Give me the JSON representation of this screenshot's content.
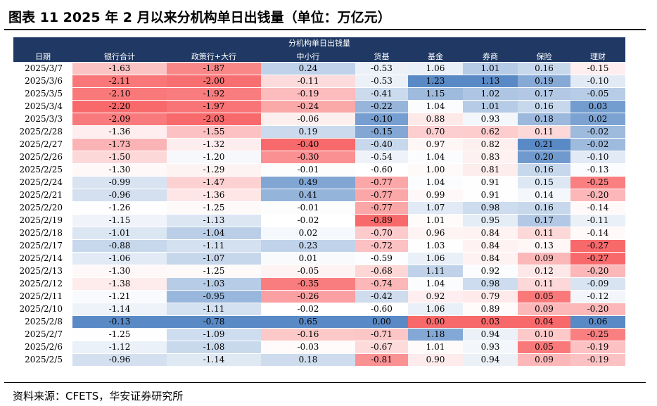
{
  "figure": {
    "title": "图表 11 2025 年 2 月以来分机构单日出钱量（单位：万亿元）",
    "source": "资料来源：CFETS，华安证券研究所"
  },
  "chart_data": {
    "type": "table",
    "title": "分机构单日出钱量",
    "columns": [
      "日期",
      "银行合计",
      "政策行+大行",
      "中小行",
      "货基",
      "基金",
      "券商",
      "保险",
      "理财"
    ],
    "rows": [
      [
        "2025/3/7",
        "-1.63",
        "-1.87",
        "0.24",
        "-0.53",
        "1.06",
        "1.01",
        "0.16",
        "-0.15"
      ],
      [
        "2025/3/6",
        "-2.11",
        "-2.00",
        "-0.11",
        "-0.53",
        "1.23",
        "1.13",
        "0.19",
        "-0.10"
      ],
      [
        "2025/3/5",
        "-2.10",
        "-1.92",
        "-0.19",
        "-0.41",
        "1.15",
        "1.02",
        "0.17",
        "-0.05"
      ],
      [
        "2025/3/4",
        "-2.20",
        "-1.97",
        "-0.24",
        "-0.22",
        "1.04",
        "1.01",
        "0.16",
        "0.03"
      ],
      [
        "2025/3/3",
        "-2.09",
        "-2.03",
        "-0.06",
        "-0.10",
        "0.88",
        "0.93",
        "0.18",
        "0.02"
      ],
      [
        "2025/2/28",
        "-1.36",
        "-1.55",
        "0.19",
        "-0.15",
        "0.70",
        "0.62",
        "0.11",
        "-0.02"
      ],
      [
        "2025/2/27",
        "-1.73",
        "-1.32",
        "-0.40",
        "-0.40",
        "0.97",
        "0.82",
        "0.21",
        "-0.02"
      ],
      [
        "2025/2/26",
        "-1.50",
        "-1.20",
        "-0.30",
        "-0.54",
        "1.04",
        "0.83",
        "0.20",
        "-0.10"
      ],
      [
        "2025/2/25",
        "-1.30",
        "-1.29",
        "-0.01",
        "-0.60",
        "1.00",
        "0.81",
        "0.16",
        "-0.13"
      ],
      [
        "2025/2/24",
        "-0.99",
        "-1.47",
        "0.49",
        "-0.77",
        "1.04",
        "0.91",
        "0.15",
        "-0.25"
      ],
      [
        "2025/2/21",
        "-0.96",
        "-1.36",
        "0.41",
        "-0.77",
        "0.99",
        "0.91",
        "0.14",
        "-0.20"
      ],
      [
        "2025/2/20",
        "-1.26",
        "-1.25",
        "-0.01",
        "-0.77",
        "1.07",
        "0.98",
        "0.16",
        "-0.14"
      ],
      [
        "2025/2/19",
        "-1.15",
        "-1.13",
        "-0.02",
        "-0.89",
        "1.01",
        "0.95",
        "0.17",
        "-0.11"
      ],
      [
        "2025/2/18",
        "-1.01",
        "-1.04",
        "0.02",
        "-0.70",
        "0.96",
        "0.84",
        "0.11",
        "-0.14"
      ],
      [
        "2025/2/17",
        "-0.88",
        "-1.11",
        "0.23",
        "-0.72",
        "1.03",
        "0.84",
        "0.13",
        "-0.27"
      ],
      [
        "2025/2/14",
        "-1.06",
        "-1.07",
        "0.01",
        "-0.59",
        "1.06",
        "0.84",
        "0.09",
        "-0.27"
      ],
      [
        "2025/2/13",
        "-1.30",
        "-1.25",
        "-0.05",
        "-0.68",
        "1.11",
        "0.92",
        "0.12",
        "-0.20"
      ],
      [
        "2025/2/12",
        "-1.38",
        "-1.03",
        "-0.35",
        "-0.74",
        "1.04",
        "0.98",
        "0.11",
        "-0.09"
      ],
      [
        "2025/2/11",
        "-1.21",
        "-0.95",
        "-0.26",
        "-0.42",
        "0.92",
        "0.79",
        "0.05",
        "-0.12"
      ],
      [
        "2025/2/10",
        "-1.14",
        "-1.11",
        "-0.02",
        "-0.60",
        "1.06",
        "0.89",
        "0.09",
        "-0.20"
      ],
      [
        "2025/2/8",
        "-0.13",
        "-0.78",
        "0.65",
        "0.00",
        "0.00",
        "0.03",
        "0.04",
        "0.06"
      ],
      [
        "2025/2/7",
        "-1.25",
        "-1.09",
        "-0.16",
        "-0.71",
        "1.18",
        "0.94",
        "0.10",
        "-0.25"
      ],
      [
        "2025/2/6",
        "-1.12",
        "-1.08",
        "-0.03",
        "-0.67",
        "1.01",
        "0.93",
        "0.05",
        "-0.19"
      ],
      [
        "2025/2/5",
        "-0.96",
        "-1.14",
        "0.18",
        "-0.81",
        "0.90",
        "0.94",
        "0.09",
        "-0.19"
      ]
    ],
    "colors": {
      "header_bg": "#1f3864",
      "low": "#f8696b",
      "mid": "#ffffff",
      "high": "#5a8ac6"
    }
  }
}
